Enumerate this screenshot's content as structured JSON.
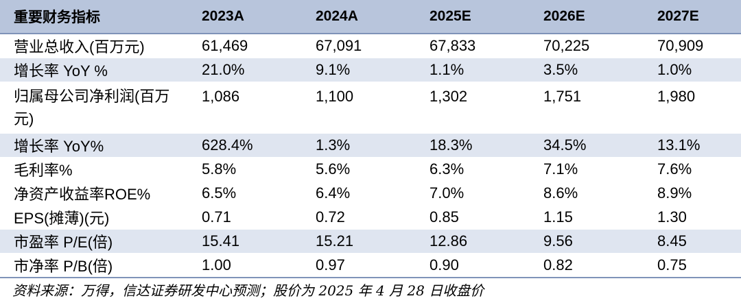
{
  "table": {
    "headers": [
      "重要财务指标",
      "2023A",
      "2024A",
      "2025E",
      "2026E",
      "2027E"
    ],
    "rows": [
      {
        "label": "营业总收入(百万元)",
        "values": [
          "61,469",
          "67,091",
          "67,833",
          "70,225",
          "70,909"
        ],
        "shaded": false
      },
      {
        "label": "增长率 YoY %",
        "values": [
          "21.0%",
          "9.1%",
          "1.1%",
          "3.5%",
          "1.0%"
        ],
        "shaded": true
      },
      {
        "label": "归属母公司净利润(百万元)",
        "values": [
          "1,086",
          "1,100",
          "1,302",
          "1,751",
          "1,980"
        ],
        "shaded": false
      },
      {
        "label": "增长率 YoY%",
        "values": [
          "628.4%",
          "1.3%",
          "18.3%",
          "34.5%",
          "13.1%"
        ],
        "shaded": true
      },
      {
        "label": "毛利率%",
        "values": [
          "5.8%",
          "5.6%",
          "6.3%",
          "7.1%",
          "7.6%"
        ],
        "shaded": false
      },
      {
        "label": "净资产收益率ROE%",
        "values": [
          "6.5%",
          "6.4%",
          "7.0%",
          "8.6%",
          "8.9%"
        ],
        "shaded": false
      },
      {
        "label": "EPS(摊薄)(元)",
        "values": [
          "0.71",
          "0.72",
          "0.85",
          "1.15",
          "1.30"
        ],
        "shaded": false
      },
      {
        "label": "市盈率 P/E(倍)",
        "values": [
          "15.41",
          "15.21",
          "12.86",
          "9.56",
          "8.45"
        ],
        "shaded": true
      },
      {
        "label": "市净率 P/B(倍)",
        "values": [
          "1.00",
          "0.97",
          "0.90",
          "0.82",
          "0.75"
        ],
        "shaded": false
      }
    ]
  },
  "source_note": "资料来源：万得，信达证券研发中心预测；股价为 2025 年 4 月 28 日收盘价",
  "colors": {
    "header_bg": "#b8c5dc",
    "shaded_row_bg": "#dfe5f0",
    "rule": "#7f93b8"
  }
}
